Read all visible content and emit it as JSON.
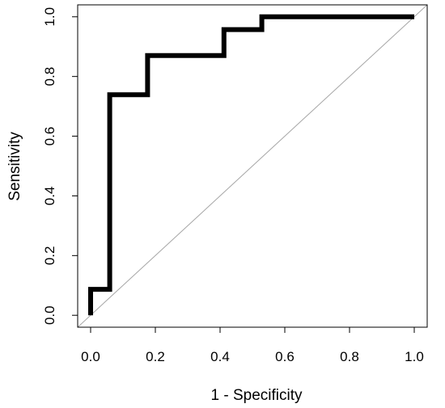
{
  "chart_data": {
    "type": "line",
    "title": "",
    "xlabel": "1 - Specificity",
    "ylabel": "Sensitivity",
    "xlim": [
      -0.04,
      1.04
    ],
    "ylim": [
      -0.04,
      1.04
    ],
    "x_ticks": [
      "0.0",
      "0.2",
      "0.4",
      "0.6",
      "0.8",
      "1.0"
    ],
    "y_ticks": [
      "0.0",
      "0.2",
      "0.4",
      "0.6",
      "0.8",
      "1.0"
    ],
    "grid": false,
    "series": [
      {
        "name": "",
        "color": "#000000",
        "points": [
          [
            0.0,
            0.0
          ],
          [
            0.0,
            0.087
          ],
          [
            0.059,
            0.087
          ],
          [
            0.059,
            0.739
          ],
          [
            0.176,
            0.739
          ],
          [
            0.176,
            0.87
          ],
          [
            0.412,
            0.87
          ],
          [
            0.412,
            0.957
          ],
          [
            0.529,
            0.957
          ],
          [
            0.529,
            1.0
          ],
          [
            1.0,
            1.0
          ]
        ]
      }
    ],
    "reference_line": {
      "color": "#a6a6a6",
      "from": [
        -0.04,
        -0.04
      ],
      "to": [
        1.04,
        1.04
      ]
    }
  }
}
